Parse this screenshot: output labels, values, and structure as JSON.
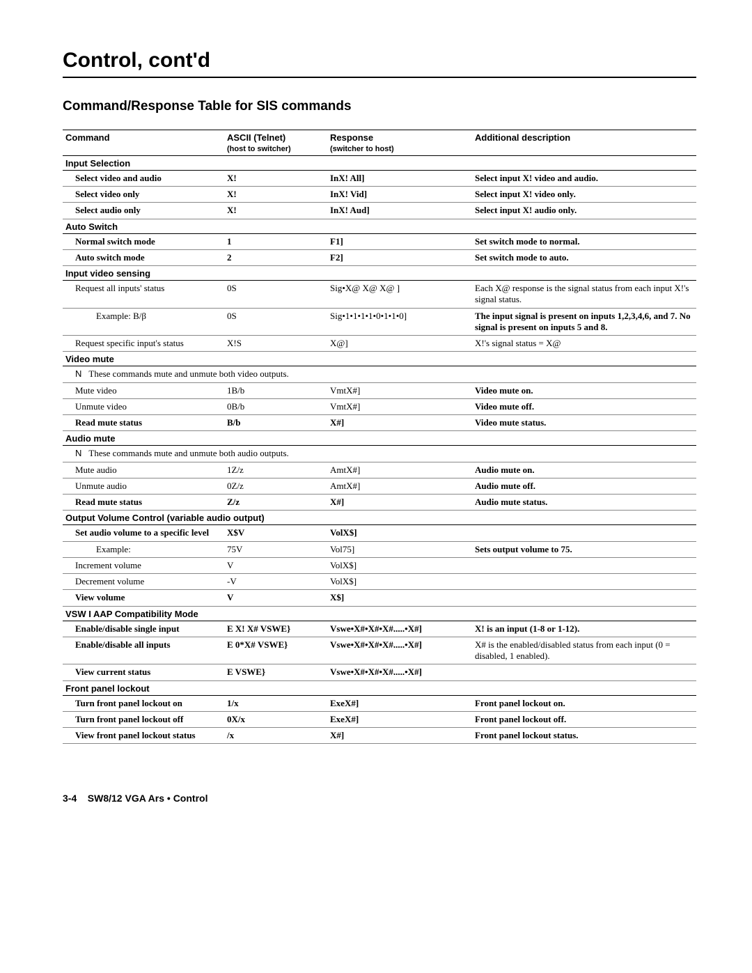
{
  "title": "Control, cont'd",
  "subtitle": "Command/Response Table for SIS commands",
  "headers": {
    "c1": "Command",
    "c2": "ASCII (Telnet)",
    "c2s": "(host to switcher)",
    "c3": "Response",
    "c3s": "(switcher to host)",
    "c4": "Additional description"
  },
  "sections": [
    {
      "title": "Input Selection",
      "rows": [
        {
          "c1": "Select video and audio",
          "c2": "X!",
          "c3": "InX! All]",
          "c4": "Select input X! video and audio.",
          "bold": true
        },
        {
          "c1": "Select video only",
          "c2": "X!",
          "c3": "InX! Vid]",
          "c4": "Select input X! video only.",
          "bold": true
        },
        {
          "c1": "Select audio only",
          "c2": "X!",
          "c3": "InX! Aud]",
          "c4": "Select input X! audio only.",
          "bold": true
        }
      ]
    },
    {
      "title": "Auto Switch",
      "rows": [
        {
          "c1": "Normal switch mode",
          "c2": "1",
          "c3": "F1]",
          "c4": "Set switch mode to normal.",
          "bold": true
        },
        {
          "c1": "Auto switch mode",
          "c2": "2",
          "c3": "F2]",
          "c4": "Set switch mode to auto.",
          "bold": true
        }
      ]
    },
    {
      "title": "Input video sensing",
      "rows": [
        {
          "c1": "Request all inputs' status",
          "c2": "0S",
          "c3": "Sig•X@ X@ X@ ]",
          "c4": "Each X@ response is the signal status from each input X!'s signal status.",
          "bold": false
        },
        {
          "c1": "Example: B/β",
          "c2": "0S",
          "c3": "Sig•1•1•1•1•0•1•1•0]",
          "c4": "The input signal is present on inputs 1,2,3,4,6, and 7.  No signal is present on inputs 5 and 8.",
          "bold": false,
          "indent": 2,
          "c4bold": true
        },
        {
          "c1": "Request specific input's status",
          "c2": "X!S",
          "c3": "X@]",
          "c4": "X!'s signal status = X@",
          "bold": false
        }
      ]
    },
    {
      "title": "Video mute",
      "note": "These commands mute and unmute both video outputs.",
      "rows": [
        {
          "c1": "Mute video",
          "c2": "1B/b",
          "c3": "VmtX#]",
          "c4": "Video mute on.",
          "bold": false,
          "c4bold": true
        },
        {
          "c1": "Unmute video",
          "c2": "0B/b",
          "c3": "VmtX#]",
          "c4": "Video mute off.",
          "bold": false,
          "c4bold": true
        },
        {
          "c1": "Read mute status",
          "c2": "B/b",
          "c3": "X#]",
          "c4": "Video mute status.",
          "bold": true
        }
      ]
    },
    {
      "title": "Audio mute",
      "note": "These commands mute and unmute both audio outputs.",
      "rows": [
        {
          "c1": "Mute audio",
          "c2": "1Z/z",
          "c3": "AmtX#]",
          "c4": "Audio mute on.",
          "bold": false,
          "c4bold": true
        },
        {
          "c1": "Unmute audio",
          "c2": "0Z/z",
          "c3": "AmtX#]",
          "c4": "Audio mute off.",
          "bold": false,
          "c4bold": true
        },
        {
          "c1": "Read mute status",
          "c2": "Z/z",
          "c3": "X#]",
          "c4": "Audio mute status.",
          "bold": true
        }
      ]
    },
    {
      "title": "Output Volume Control (variable audio output)",
      "rows": [
        {
          "c1": "Set audio volume to a specific level",
          "c2": "X$V",
          "c3": "VolX$]",
          "c4": "",
          "bold": true
        },
        {
          "c1": "Example:",
          "c2": "75V",
          "c3": "Vol75]",
          "c4": "Sets output volume to 75.",
          "bold": false,
          "indent": 2,
          "c4bold": true
        },
        {
          "c1": "Increment volume",
          "c2": "V",
          "c3": "VolX$]",
          "c4": "",
          "bold": false
        },
        {
          "c1": "Decrement volume",
          "c2": "-V",
          "c3": "VolX$]",
          "c4": "",
          "bold": false
        },
        {
          "c1": "View volume",
          "c2": "V",
          "c3": "X$]",
          "c4": "",
          "bold": true
        }
      ]
    },
    {
      "title": "VSW I AAP Compatibility Mode",
      "rows": [
        {
          "c1": "Enable/disable single input",
          "c2": "E X!  X# VSWE}",
          "c3": "Vswe•X#•X#•X#.....•X#]",
          "c4": "X! is an input (1-8 or 1-12).",
          "bold": true
        },
        {
          "c1": "Enable/disable all inputs",
          "c2": "E  0*X# VSWE}",
          "c3": "Vswe•X#•X#•X#.....•X#]",
          "c4": "X# is the enabled/disabled status from each input (0 = disabled, 1  enabled).",
          "bold": true,
          "c4plain": true
        },
        {
          "c1": "View current status",
          "c2": "E   VSWE}",
          "c3": "Vswe•X#•X#•X#.....•X#]",
          "c4": "",
          "bold": true
        }
      ]
    },
    {
      "title": "Front panel lockout",
      "rows": [
        {
          "c1": "Turn front panel lockout on",
          "c2": "1/x",
          "c3": "ExeX#]",
          "c4": "Front panel lockout on.",
          "bold": true
        },
        {
          "c1": "Turn front panel lockout off",
          "c2": "0X/x",
          "c3": "ExeX#]",
          "c4": "Front panel lockout off.",
          "bold": true
        },
        {
          "c1": "View front panel lockout status",
          "c2": "/x",
          "c3": "X#]",
          "c4": "Front panel lockout status.",
          "bold": true
        }
      ]
    }
  ],
  "footer": {
    "page": "3-4",
    "text": "SW8/12 VGA Ars • Control"
  }
}
